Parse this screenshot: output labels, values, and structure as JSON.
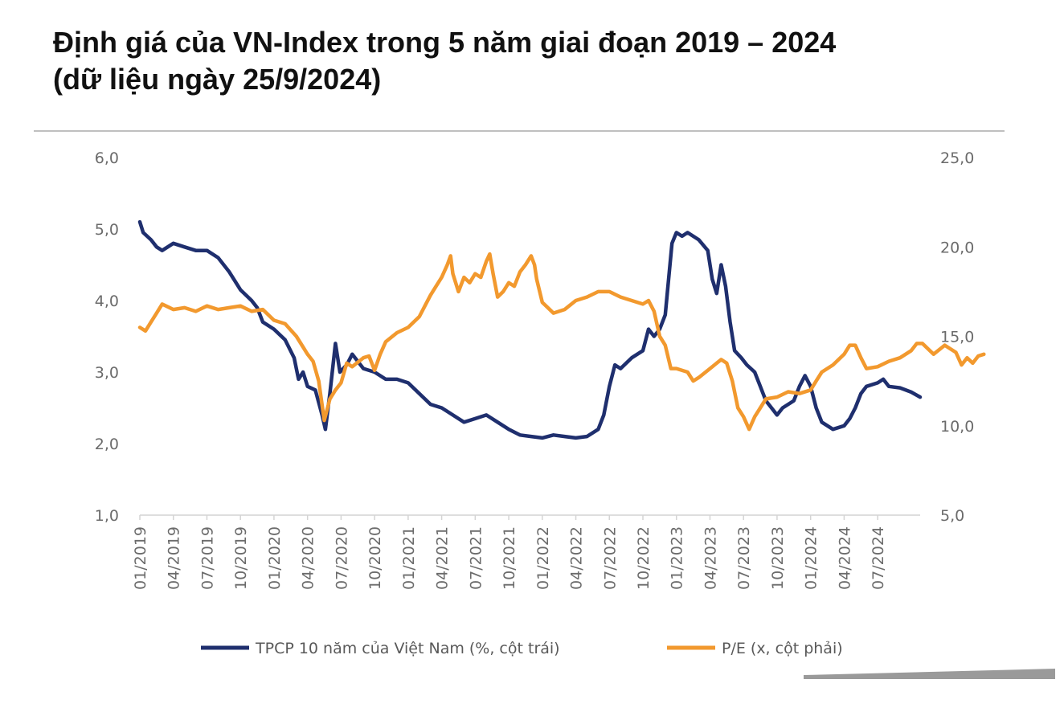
{
  "chart_data": {
    "type": "line",
    "title": "Định giá của VN-Index trong 5 năm giai đoạn 2019 – 2024",
    "subtitle": "(dữ liệu ngày 25/9/2024)",
    "x_tick_labels": [
      "01/2019",
      "04/2019",
      "07/2019",
      "10/2019",
      "01/2020",
      "04/2020",
      "07/2020",
      "10/2020",
      "01/2021",
      "04/2021",
      "07/2021",
      "10/2021",
      "01/2022",
      "04/2022",
      "07/2022",
      "10/2022",
      "01/2023",
      "04/2023",
      "07/2023",
      "10/2023",
      "01/2024",
      "04/2024",
      "07/2024"
    ],
    "y_left": {
      "min": 1.0,
      "max": 6.0,
      "ticks": [
        "6,0",
        "5,0",
        "4,0",
        "3,0",
        "2,0",
        "1,0"
      ],
      "tick_values": [
        6,
        5,
        4,
        3,
        2,
        1
      ]
    },
    "y_right": {
      "min": 5.0,
      "max": 25.0,
      "ticks": [
        "25,0",
        "20,0",
        "15,0",
        "10,0",
        "5,0"
      ],
      "tick_values": [
        25,
        20,
        15,
        10,
        5
      ]
    },
    "x_range_months": [
      0,
      69.8
    ],
    "series": [
      {
        "name": "TPCP 10 năm của Việt Nam (%, cột trái)",
        "axis": "left",
        "color": "#1f2f6e",
        "points": [
          [
            0,
            5.1
          ],
          [
            0.3,
            4.95
          ],
          [
            1,
            4.85
          ],
          [
            1.5,
            4.75
          ],
          [
            2,
            4.7
          ],
          [
            3,
            4.8
          ],
          [
            4,
            4.75
          ],
          [
            5,
            4.7
          ],
          [
            6,
            4.7
          ],
          [
            7,
            4.6
          ],
          [
            8,
            4.4
          ],
          [
            9,
            4.15
          ],
          [
            10,
            4.0
          ],
          [
            10.5,
            3.9
          ],
          [
            11,
            3.7
          ],
          [
            12,
            3.6
          ],
          [
            13,
            3.45
          ],
          [
            13.8,
            3.2
          ],
          [
            14.2,
            2.9
          ],
          [
            14.6,
            3.0
          ],
          [
            15,
            2.8
          ],
          [
            15.7,
            2.75
          ],
          [
            16.3,
            2.4
          ],
          [
            16.6,
            2.2
          ],
          [
            17,
            2.7
          ],
          [
            17.5,
            3.4
          ],
          [
            17.9,
            3.0
          ],
          [
            18.5,
            3.1
          ],
          [
            19,
            3.25
          ],
          [
            20,
            3.05
          ],
          [
            21,
            3.0
          ],
          [
            22,
            2.9
          ],
          [
            23,
            2.9
          ],
          [
            24,
            2.85
          ],
          [
            25,
            2.7
          ],
          [
            26,
            2.55
          ],
          [
            27,
            2.5
          ],
          [
            28,
            2.4
          ],
          [
            29,
            2.3
          ],
          [
            30,
            2.35
          ],
          [
            31,
            2.4
          ],
          [
            32,
            2.3
          ],
          [
            33,
            2.2
          ],
          [
            34,
            2.12
          ],
          [
            35,
            2.1
          ],
          [
            36,
            2.08
          ],
          [
            37,
            2.12
          ],
          [
            38,
            2.1
          ],
          [
            39,
            2.08
          ],
          [
            40,
            2.1
          ],
          [
            41,
            2.2
          ],
          [
            41.5,
            2.4
          ],
          [
            42,
            2.8
          ],
          [
            42.5,
            3.1
          ],
          [
            43,
            3.05
          ],
          [
            44,
            3.2
          ],
          [
            45,
            3.3
          ],
          [
            45.5,
            3.6
          ],
          [
            46,
            3.5
          ],
          [
            46.5,
            3.6
          ],
          [
            47,
            3.8
          ],
          [
            47.3,
            4.3
          ],
          [
            47.6,
            4.8
          ],
          [
            48,
            4.95
          ],
          [
            48.5,
            4.9
          ],
          [
            49,
            4.95
          ],
          [
            50,
            4.85
          ],
          [
            50.8,
            4.7
          ],
          [
            51.2,
            4.3
          ],
          [
            51.6,
            4.1
          ],
          [
            52,
            4.5
          ],
          [
            52.4,
            4.2
          ],
          [
            52.8,
            3.7
          ],
          [
            53.2,
            3.3
          ],
          [
            53.8,
            3.2
          ],
          [
            54.3,
            3.1
          ],
          [
            55,
            3.0
          ],
          [
            55.5,
            2.8
          ],
          [
            56,
            2.6
          ],
          [
            56.5,
            2.5
          ],
          [
            57,
            2.4
          ],
          [
            57.5,
            2.5
          ],
          [
            58,
            2.55
          ],
          [
            58.5,
            2.6
          ],
          [
            59,
            2.8
          ],
          [
            59.5,
            2.95
          ],
          [
            60,
            2.8
          ],
          [
            60.5,
            2.5
          ],
          [
            61,
            2.3
          ],
          [
            62,
            2.2
          ],
          [
            63,
            2.25
          ],
          [
            63.5,
            2.35
          ],
          [
            64,
            2.5
          ],
          [
            64.5,
            2.7
          ],
          [
            65,
            2.8
          ],
          [
            66,
            2.85
          ],
          [
            66.5,
            2.9
          ],
          [
            67,
            2.8
          ],
          [
            68,
            2.78
          ],
          [
            69,
            2.72
          ],
          [
            69.8,
            2.65
          ]
        ]
      },
      {
        "name": "P/E (x, cột phải)",
        "axis": "right",
        "color": "#f2992e",
        "points": [
          [
            0,
            15.5
          ],
          [
            0.5,
            15.3
          ],
          [
            1,
            15.8
          ],
          [
            1.5,
            16.3
          ],
          [
            2,
            16.8
          ],
          [
            3,
            16.5
          ],
          [
            4,
            16.6
          ],
          [
            5,
            16.4
          ],
          [
            6,
            16.7
          ],
          [
            7,
            16.5
          ],
          [
            8,
            16.6
          ],
          [
            9,
            16.7
          ],
          [
            10,
            16.4
          ],
          [
            11,
            16.5
          ],
          [
            12,
            15.9
          ],
          [
            13,
            15.7
          ],
          [
            14,
            15.0
          ],
          [
            15,
            14.0
          ],
          [
            15.5,
            13.6
          ],
          [
            16,
            12.5
          ],
          [
            16.5,
            10.3
          ],
          [
            17,
            11.5
          ],
          [
            17.5,
            12.0
          ],
          [
            18,
            12.4
          ],
          [
            18.5,
            13.5
          ],
          [
            19,
            13.3
          ],
          [
            20,
            13.8
          ],
          [
            20.5,
            13.9
          ],
          [
            21,
            13.1
          ],
          [
            21.5,
            14.0
          ],
          [
            22,
            14.7
          ],
          [
            23,
            15.2
          ],
          [
            24,
            15.5
          ],
          [
            25,
            16.1
          ],
          [
            25.5,
            16.7
          ],
          [
            26,
            17.3
          ],
          [
            26.5,
            17.8
          ],
          [
            27,
            18.3
          ],
          [
            27.5,
            19.0
          ],
          [
            27.8,
            19.5
          ],
          [
            28,
            18.5
          ],
          [
            28.5,
            17.5
          ],
          [
            29,
            18.3
          ],
          [
            29.5,
            18.0
          ],
          [
            30,
            18.5
          ],
          [
            30.5,
            18.3
          ],
          [
            31,
            19.2
          ],
          [
            31.3,
            19.6
          ],
          [
            31.6,
            18.5
          ],
          [
            32,
            17.2
          ],
          [
            32.5,
            17.5
          ],
          [
            33,
            18.0
          ],
          [
            33.5,
            17.8
          ],
          [
            34,
            18.6
          ],
          [
            34.5,
            19.0
          ],
          [
            35,
            19.5
          ],
          [
            35.3,
            19.0
          ],
          [
            35.5,
            18.2
          ],
          [
            36,
            16.9
          ],
          [
            37,
            16.3
          ],
          [
            38,
            16.5
          ],
          [
            39,
            17.0
          ],
          [
            40,
            17.2
          ],
          [
            41,
            17.5
          ],
          [
            42,
            17.5
          ],
          [
            43,
            17.2
          ],
          [
            44,
            17.0
          ],
          [
            45,
            16.8
          ],
          [
            45.5,
            17.0
          ],
          [
            46,
            16.4
          ],
          [
            46.5,
            15.0
          ],
          [
            47,
            14.5
          ],
          [
            47.5,
            13.2
          ],
          [
            48,
            13.2
          ],
          [
            49,
            13.0
          ],
          [
            49.5,
            12.5
          ],
          [
            50,
            12.7
          ],
          [
            51,
            13.2
          ],
          [
            52,
            13.7
          ],
          [
            52.5,
            13.5
          ],
          [
            53,
            12.5
          ],
          [
            53.5,
            11.0
          ],
          [
            54,
            10.5
          ],
          [
            54.5,
            9.8
          ],
          [
            55,
            10.5
          ],
          [
            55.5,
            11.0
          ],
          [
            56,
            11.5
          ],
          [
            57,
            11.6
          ],
          [
            58,
            11.9
          ],
          [
            59,
            11.8
          ],
          [
            60,
            12.0
          ],
          [
            60.5,
            12.5
          ],
          [
            61,
            13.0
          ],
          [
            62,
            13.4
          ],
          [
            63,
            14.0
          ],
          [
            63.5,
            14.5
          ],
          [
            64,
            14.5
          ],
          [
            64.5,
            13.8
          ],
          [
            65,
            13.2
          ],
          [
            66,
            13.3
          ],
          [
            67,
            13.6
          ],
          [
            68,
            13.8
          ],
          [
            69,
            14.2
          ],
          [
            69.5,
            14.6
          ],
          [
            70,
            14.6
          ],
          [
            71,
            14.0
          ],
          [
            72,
            14.5
          ],
          [
            73,
            14.1
          ],
          [
            73.5,
            13.4
          ],
          [
            74,
            13.8
          ],
          [
            74.5,
            13.5
          ],
          [
            75,
            13.9
          ],
          [
            75.5,
            14.0
          ]
        ]
      }
    ],
    "legend_position": "bottom"
  }
}
